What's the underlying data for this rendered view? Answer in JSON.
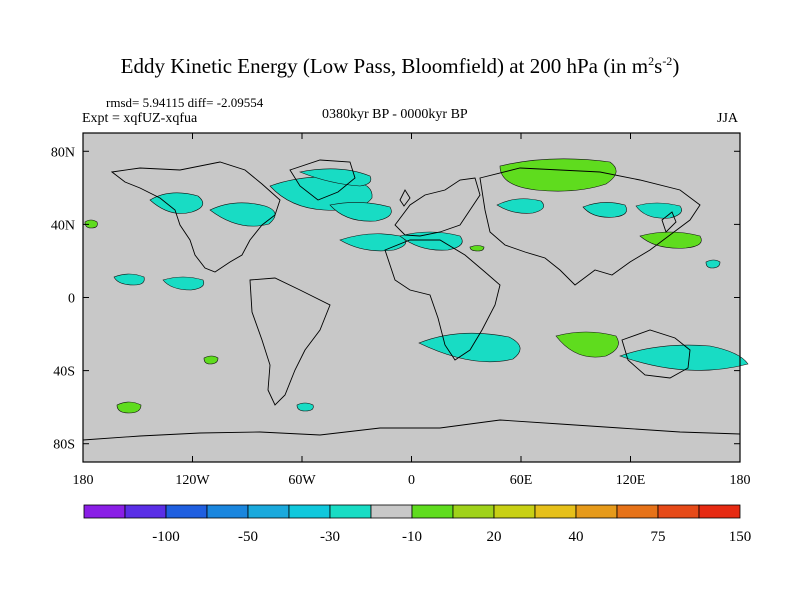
{
  "title": {
    "main": "Eddy Kinetic Energy (Low Pass, Bloomfield) at 200 hPa (in m",
    "sup1": "2",
    "mid": "s",
    "sup2": "-2",
    "close": ")"
  },
  "rmsd_text": "rmsd= 5.94115 diff= -2.09554",
  "expt_text": "Expt = xqfUZ-xqfua",
  "period_text": "0380kyr BP - 0000kyr BP",
  "season_text": "JJA",
  "chart_data": {
    "type": "heatmap",
    "title": "Eddy Kinetic Energy (Low Pass, Bloomfield) at 200 hPa (in m2s-2)",
    "x_ticks": [
      "180",
      "120W",
      "60W",
      "0",
      "60E",
      "120E",
      "180"
    ],
    "y_ticks": [
      "80N",
      "40N",
      "0",
      "40S",
      "80S"
    ],
    "xlim": [
      -180,
      180
    ],
    "ylim": [
      -90,
      90
    ],
    "colorbar_labels": [
      "-100",
      "-50",
      "-30",
      "-10",
      "20",
      "40",
      "75",
      "150"
    ],
    "colors": [
      "#8a1ee6",
      "#5a2ee6",
      "#1f5fe0",
      "#1a86de",
      "#1aa9dc",
      "#10c8dc",
      "#18dcc4",
      "#c8c8c8",
      "#5fdc1e",
      "#9fd21a",
      "#c8d014",
      "#e6c01a",
      "#e69a1a",
      "#e67218",
      "#e64a18",
      "#e62a12"
    ],
    "background_color": "#c8c8c8",
    "negative_color": "#18dcc4",
    "positive_color": "#5fdc1e"
  }
}
